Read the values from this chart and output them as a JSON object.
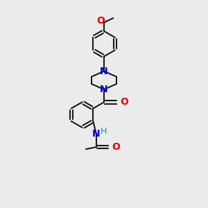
{
  "bg_color": "#ebebeb",
  "bond_color": "#1a1a1a",
  "bond_width": 1.5,
  "N_color": "#0000ee",
  "O_color": "#ee0000",
  "H_color": "#009999",
  "font_size": 9,
  "figsize": [
    3.0,
    3.0
  ],
  "dpi": 100,
  "xlim": [
    0,
    10
  ],
  "ylim": [
    0,
    10
  ]
}
